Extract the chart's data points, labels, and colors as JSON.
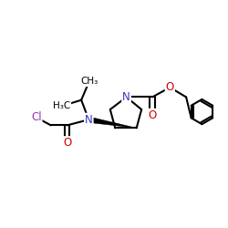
{
  "bg_color": "#ffffff",
  "atom_colors": {
    "N": "#3333cc",
    "O": "#cc0000",
    "Cl": "#9933bb",
    "C": "#000000"
  },
  "bond_color": "#000000",
  "bond_width": 1.5,
  "font_size_atom": 8.5
}
